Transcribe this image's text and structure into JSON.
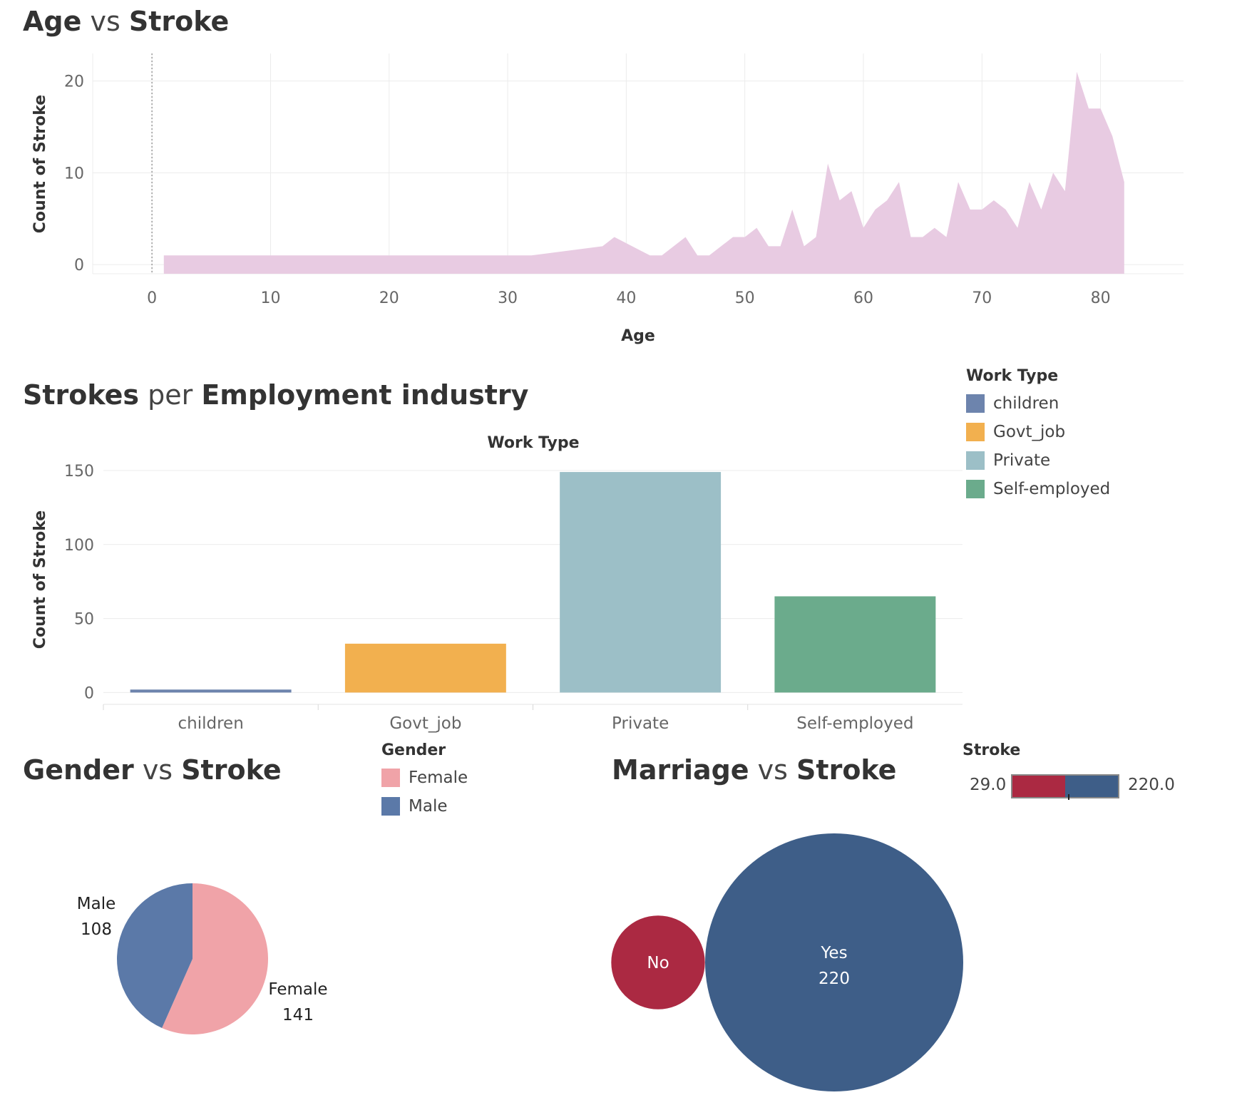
{
  "titles": {
    "age": {
      "part1": "Age",
      "mid": " vs ",
      "part2": "Stroke"
    },
    "employment": {
      "part1": "Strokes",
      "mid": " per ",
      "part2": "Employment industry"
    },
    "gender": {
      "part1": "Gender",
      "mid": " vs ",
      "part2": "Stroke"
    },
    "marriage": {
      "part1": "Marriage",
      "mid": " vs ",
      "part2": "Stroke"
    }
  },
  "legends": {
    "work_type": {
      "title": "Work Type",
      "items": [
        {
          "label": "children",
          "color": "#6d84ad"
        },
        {
          "label": "Govt_job",
          "color": "#f2b04f"
        },
        {
          "label": "Private",
          "color": "#9cbfc7"
        },
        {
          "label": "Self-employed",
          "color": "#6bab8c"
        }
      ]
    },
    "gender": {
      "title": "Gender",
      "items": [
        {
          "label": "Female",
          "color": "#f0a3a8"
        },
        {
          "label": "Male",
          "color": "#5b79a8"
        }
      ]
    },
    "stroke": {
      "title": "Stroke",
      "min": "29.0",
      "max": "220.0",
      "color_low": "#ab2942",
      "color_high": "#3e5e88"
    }
  },
  "chart_data": [
    {
      "type": "area",
      "title": "Age vs Stroke",
      "xlabel": "Age",
      "ylabel": "Count of Stroke",
      "xlim": [
        -5,
        87
      ],
      "ylim": [
        -1,
        23
      ],
      "xticks": [
        0,
        10,
        20,
        30,
        40,
        50,
        60,
        70,
        80
      ],
      "yticks": [
        0,
        10,
        20
      ],
      "color": "#e8cbe2",
      "x": [
        1,
        32,
        38,
        39,
        42,
        43,
        45,
        46,
        47,
        49,
        50,
        51,
        52,
        53,
        54,
        55,
        56,
        57,
        58,
        59,
        60,
        61,
        62,
        63,
        64,
        65,
        66,
        67,
        68,
        69,
        70,
        71,
        72,
        73,
        74,
        75,
        76,
        77,
        78,
        79,
        80,
        81,
        82
      ],
      "y": [
        1,
        1,
        2,
        3,
        1,
        1,
        3,
        1,
        1,
        3,
        3,
        4,
        2,
        2,
        6,
        2,
        3,
        11,
        7,
        8,
        4,
        6,
        7,
        9,
        3,
        3,
        4,
        3,
        9,
        6,
        6,
        7,
        6,
        4,
        9,
        6,
        10,
        8,
        21,
        17,
        17,
        14,
        9
      ]
    },
    {
      "type": "bar",
      "title": "Strokes per Employment industry",
      "header": "Work Type",
      "ylabel": "Count of Stroke",
      "categories": [
        "children",
        "Govt_job",
        "Private",
        "Self-employed"
      ],
      "values": [
        2,
        33,
        149,
        65
      ],
      "ylim": [
        -8,
        150
      ],
      "yticks": [
        0,
        50,
        100,
        150
      ]
    },
    {
      "type": "pie",
      "title": "Gender vs Stroke",
      "categories": [
        "Female",
        "Male"
      ],
      "values": [
        141,
        108
      ],
      "colors": [
        "#f0a3a8",
        "#5b79a8"
      ]
    },
    {
      "type": "scatter",
      "title": "Marriage vs Stroke",
      "categories": [
        "No",
        "Yes"
      ],
      "values": [
        29,
        220
      ],
      "colors": [
        "#ab2942",
        "#3e5e88"
      ]
    }
  ]
}
